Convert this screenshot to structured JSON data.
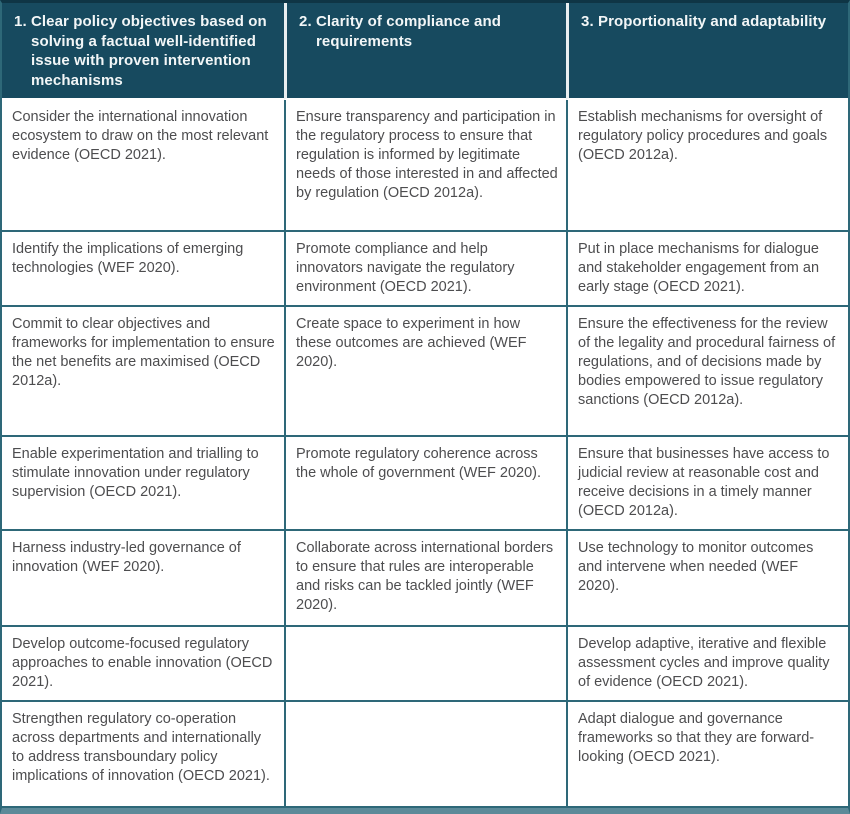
{
  "colors": {
    "header_bg": "#174a5f",
    "header_text": "#f2f6f7",
    "header_divider": "#e9eff1",
    "grid_border": "#2e6878",
    "outer_top": "#0f3545",
    "bottom_bar": "#5d8a99",
    "body_text": "#4d4d4f"
  },
  "table": {
    "headers": [
      "1. Clear policy objectives based on solving a factual well-identified issue with proven intervention mechanisms",
      "2. Clarity of compliance and requirements",
      "3. Proportionality and adaptability"
    ],
    "rows": [
      {
        "cells": [
          "Consider the international innovation ecosystem to draw on the most relevant evidence (OECD 2021).",
          "Ensure transparency and participation in the regulatory process to ensure that regulation is informed by legitimate needs of those interested in and affected by regulation (OECD 2012a).",
          "Establish mechanisms for oversight of regulatory policy procedures and goals (OECD 2012a)."
        ]
      },
      {
        "cells": [
          "Identify the implications of emerging technologies (WEF 2020).",
          "Promote compliance and help innovators navigate the regulatory environment (OECD 2021).",
          "Put in place mechanisms for dialogue and stakeholder engagement from an early stage (OECD 2021)."
        ]
      },
      {
        "cells": [
          "Commit to clear objectives and frameworks for implementation to ensure the net benefits are maximised (OECD 2012a).",
          "Create space to experiment in how these outcomes are achieved (WEF 2020).",
          "Ensure the effectiveness for the review of the legality and procedural fairness of regulations, and of decisions made by bodies empowered to issue regulatory sanctions (OECD 2012a)."
        ]
      },
      {
        "cells": [
          "Enable experimentation and trialling to stimulate innovation under regulatory supervision (OECD 2021).",
          "Promote regulatory coherence across the whole of government (WEF 2020).",
          "Ensure that businesses have access to judicial review at reasonable cost and receive decisions in a timely manner (OECD 2012a)."
        ]
      },
      {
        "cells": [
          "Harness industry-led governance of innovation (WEF 2020).",
          "Collaborate across international borders to ensure that rules are interoperable and risks can be tackled jointly (WEF 2020).",
          "Use technology to monitor outcomes and intervene when needed (WEF 2020)."
        ]
      },
      {
        "cells": [
          "Develop outcome-focused regulatory approaches to enable innovation (OECD 2021).",
          "",
          "Develop adaptive, iterative and flexible assessment cycles and improve quality of evidence (OECD 2021)."
        ]
      },
      {
        "cells": [
          "Strengthen regulatory co-operation across departments and internationally to address transboundary policy implications of innovation (OECD 2021).",
          "",
          "Adapt dialogue and governance frameworks so that they are forward-looking (OECD 2021)."
        ]
      }
    ]
  }
}
